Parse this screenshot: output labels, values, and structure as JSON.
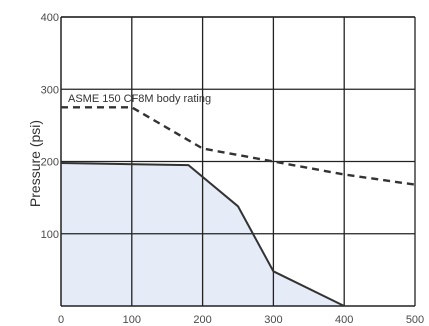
{
  "chart_data": {
    "type": "line",
    "xlabel": "",
    "ylabel": "Pressure (psi)",
    "xlim": [
      0,
      500
    ],
    "ylim": [
      0,
      400
    ],
    "x_ticks": [
      "0",
      "100",
      "200",
      "300",
      "400",
      "500"
    ],
    "y_ticks": [
      "100",
      "200",
      "300",
      "400"
    ],
    "grid": true,
    "annotation": "ASME 150 CF8M body rating",
    "series": [
      {
        "style": "solid",
        "fill": true,
        "points": [
          [
            0,
            198
          ],
          [
            180,
            195
          ],
          [
            250,
            138
          ],
          [
            300,
            48
          ],
          [
            400,
            0
          ]
        ]
      },
      {
        "style": "dashed",
        "points": [
          [
            0,
            275
          ],
          [
            100,
            275
          ],
          [
            200,
            218
          ],
          [
            300,
            200
          ],
          [
            400,
            182
          ],
          [
            500,
            168
          ]
        ]
      }
    ],
    "colors": {
      "grid": "#222222",
      "line": "#333333",
      "fill": "#e6ebf8"
    }
  }
}
